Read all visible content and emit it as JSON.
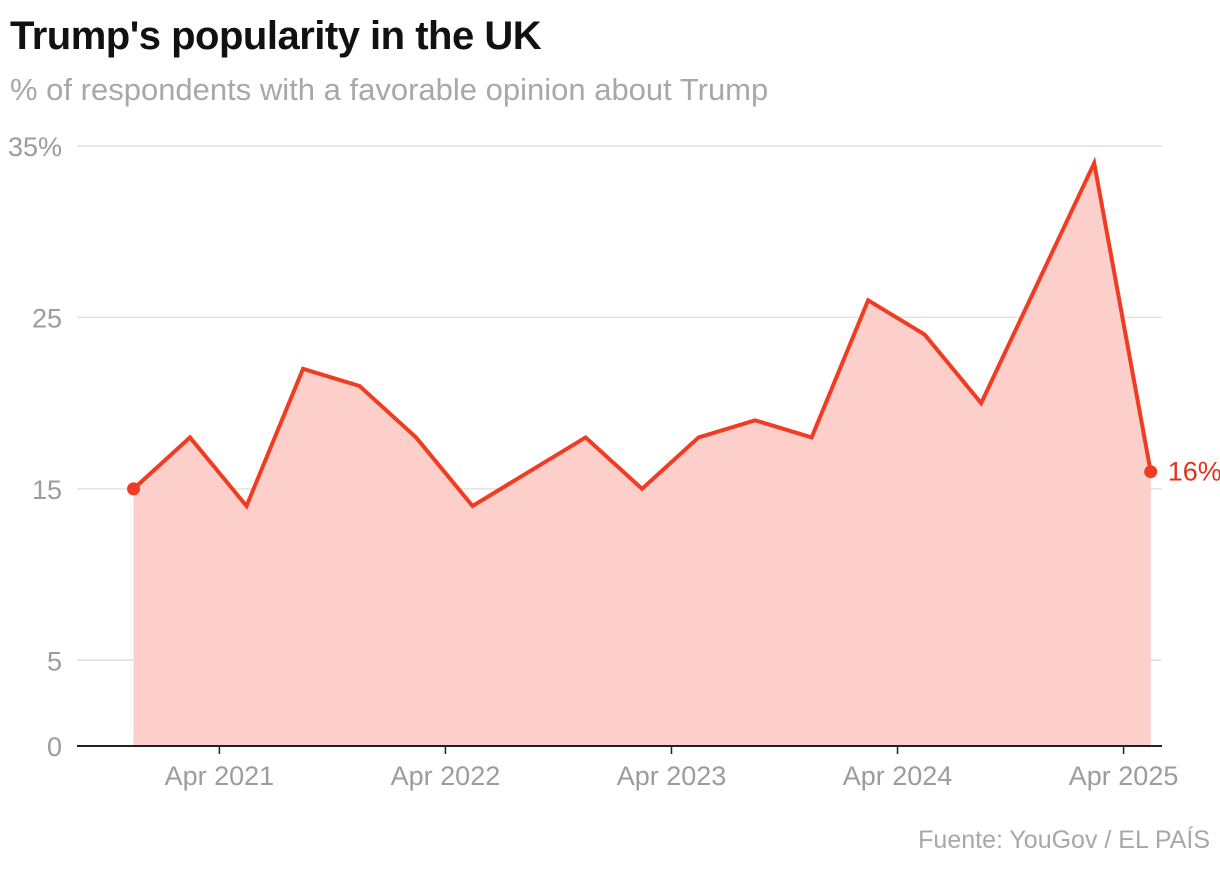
{
  "title": "Trump's popularity in the UK",
  "subtitle": "% of respondents with a favorable opinion about Trump",
  "source": "Fuente: YouGov / EL PAÍS",
  "colors": {
    "line": "#f03c23",
    "area": "#fdcfca",
    "grid": "#e2e2e2",
    "axis": "#222222",
    "end_label": "#e0321b"
  },
  "chart_data": {
    "type": "area",
    "title": "Trump's popularity in the UK",
    "subtitle": "% of respondents with a favorable opinion about Trump",
    "xlabel": "",
    "ylabel": "",
    "ylim": [
      0,
      35
    ],
    "y_ticks": [
      {
        "value": 0,
        "label": "0"
      },
      {
        "value": 5,
        "label": "5"
      },
      {
        "value": 15,
        "label": "15"
      },
      {
        "value": 25,
        "label": "25"
      },
      {
        "value": 35,
        "label": "35%"
      }
    ],
    "x_ticks": [
      {
        "x": 2021.25,
        "label": "Apr 2021"
      },
      {
        "x": 2022.25,
        "label": "Apr 2022"
      },
      {
        "x": 2023.25,
        "label": "Apr 2023"
      },
      {
        "x": 2024.25,
        "label": "Apr 2024"
      },
      {
        "x": 2025.25,
        "label": "Apr 2025"
      }
    ],
    "xlim": [
      2020.62,
      2025.42
    ],
    "series": [
      {
        "name": "Favorable opinion of Trump",
        "points": [
          {
            "x": 2020.87,
            "y": 15
          },
          {
            "x": 2021.12,
            "y": 18
          },
          {
            "x": 2021.37,
            "y": 14
          },
          {
            "x": 2021.62,
            "y": 22
          },
          {
            "x": 2021.87,
            "y": 21
          },
          {
            "x": 2022.12,
            "y": 18
          },
          {
            "x": 2022.37,
            "y": 14
          },
          {
            "x": 2022.62,
            "y": 16
          },
          {
            "x": 2022.87,
            "y": 18
          },
          {
            "x": 2023.12,
            "y": 15
          },
          {
            "x": 2023.37,
            "y": 18
          },
          {
            "x": 2023.62,
            "y": 19
          },
          {
            "x": 2023.87,
            "y": 18
          },
          {
            "x": 2024.12,
            "y": 26
          },
          {
            "x": 2024.37,
            "y": 24
          },
          {
            "x": 2024.62,
            "y": 20
          },
          {
            "x": 2024.87,
            "y": 27
          },
          {
            "x": 2025.12,
            "y": 34
          },
          {
            "x": 2025.37,
            "y": 16
          }
        ]
      }
    ],
    "end_label": "16%"
  }
}
